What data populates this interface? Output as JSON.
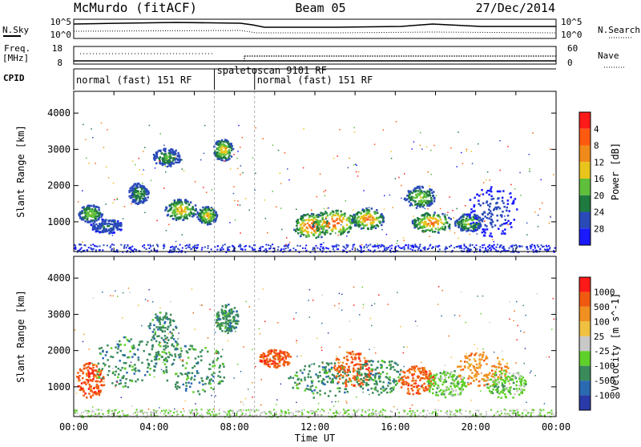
{
  "header": {
    "station": "McMurdo (fitACF)",
    "beam": "Beam 05",
    "date": "27/Dec/2014"
  },
  "strips": {
    "nsky_label": "N.Sky",
    "nsky_ticks": [
      "10^5",
      "10^0"
    ],
    "nsearch_label": "N.Search",
    "nsearch_ticks": [
      "10^5",
      "10^0"
    ],
    "freq_label_1": "Freq.",
    "freq_label_2": "[MHz]",
    "freq_ticks": [
      "18",
      "8"
    ],
    "nave_label": "Nave",
    "nave_ticks": [
      "60",
      "0"
    ],
    "cpid_label": "CPID",
    "cpid_segments": [
      {
        "label": "normal (fast) 151 RF",
        "start": 0.0,
        "end": 7.0
      },
      {
        "label": "spaletoscan 9101 RF",
        "start": 7.0,
        "end": 9.0
      },
      {
        "label": "normal (fast) 151 RF",
        "start": 9.0,
        "end": 24.0
      }
    ]
  },
  "chart_data": [
    {
      "type": "heatmap",
      "quantity": "Power",
      "ylabel": "Slant Range [km]",
      "xlabel": "Time UT",
      "xlim": [
        0,
        24
      ],
      "ylim": [
        180,
        4600
      ],
      "x_ticks": [
        "00:00",
        "04:00",
        "08:00",
        "12:00",
        "16:00",
        "20:00",
        "00:00"
      ],
      "y_ticks": [
        "1000",
        "2000",
        "3000",
        "4000"
      ],
      "colorbar": {
        "label": "Power [dB]",
        "ticks": [
          "4",
          "8",
          "12",
          "16",
          "20",
          "24",
          "28"
        ],
        "colors": [
          "#1a1aff",
          "#2a4ab8",
          "#1f7a3f",
          "#5fbf3a",
          "#e8c41c",
          "#f08a1a",
          "#ff5a10",
          "#ff1a1a"
        ]
      },
      "blobs": [
        {
          "t": 0.8,
          "r": 1250,
          "dt": 0.6,
          "dr": 250,
          "level": 4
        },
        {
          "t": 1.6,
          "r": 900,
          "dt": 0.8,
          "dr": 200,
          "level": 2
        },
        {
          "t": 3.2,
          "r": 1800,
          "dt": 0.5,
          "dr": 300,
          "level": 3
        },
        {
          "t": 4.6,
          "r": 2800,
          "dt": 0.7,
          "dr": 250,
          "level": 3
        },
        {
          "t": 5.3,
          "r": 1350,
          "dt": 0.8,
          "dr": 300,
          "level": 5
        },
        {
          "t": 6.6,
          "r": 1200,
          "dt": 0.5,
          "dr": 250,
          "level": 5
        },
        {
          "t": 7.4,
          "r": 3000,
          "dt": 0.5,
          "dr": 300,
          "level": 5
        },
        {
          "t": 11.8,
          "r": 900,
          "dt": 0.9,
          "dr": 350,
          "level": 7
        },
        {
          "t": 12.9,
          "r": 1000,
          "dt": 1.1,
          "dr": 350,
          "level": 7
        },
        {
          "t": 14.6,
          "r": 1100,
          "dt": 0.8,
          "dr": 300,
          "level": 6
        },
        {
          "t": 17.8,
          "r": 1000,
          "dt": 1.0,
          "dr": 300,
          "level": 6
        },
        {
          "t": 17.2,
          "r": 1700,
          "dt": 0.8,
          "dr": 300,
          "level": 4
        },
        {
          "t": 19.6,
          "r": 1000,
          "dt": 0.7,
          "dr": 250,
          "level": 4
        },
        {
          "t": 20.8,
          "r": 1300,
          "dt": 1.3,
          "dr": 700,
          "level": 1
        }
      ]
    },
    {
      "type": "heatmap",
      "quantity": "Velocity",
      "ylabel": "Slant Range [km]",
      "xlabel": "Time UT",
      "xlim": [
        0,
        24
      ],
      "ylim": [
        180,
        4600
      ],
      "x_ticks": [
        "00:00",
        "04:00",
        "08:00",
        "12:00",
        "16:00",
        "20:00",
        "00:00"
      ],
      "y_ticks": [
        "1000",
        "2000",
        "3000",
        "4000"
      ],
      "colorbar": {
        "label": "Velocity [m s^-1]",
        "ticks": [
          "1000",
          "500",
          "100",
          "25",
          "-25",
          "-100",
          "-500",
          "-1000"
        ],
        "colors": [
          "#2a3aa8",
          "#2a6ab0",
          "#3a8a5a",
          "#5fcf2a",
          "#c8c8c8",
          "#f0c040",
          "#f09020",
          "#f05a10",
          "#ff1a1a"
        ]
      },
      "blobs": [
        {
          "t": 0.8,
          "r": 1200,
          "dt": 0.7,
          "dr": 500,
          "level": 7
        },
        {
          "t": 2.5,
          "r": 1700,
          "dt": 1.6,
          "dr": 700,
          "level": 2
        },
        {
          "t": 4.4,
          "r": 2400,
          "dt": 0.8,
          "dr": 700,
          "level": 2
        },
        {
          "t": 6.0,
          "r": 1500,
          "dt": 1.6,
          "dr": 700,
          "level": 2
        },
        {
          "t": 7.6,
          "r": 2900,
          "dt": 0.6,
          "dr": 400,
          "level": 2
        },
        {
          "t": 10.0,
          "r": 1800,
          "dt": 0.8,
          "dr": 250,
          "level": 7
        },
        {
          "t": 12.4,
          "r": 1200,
          "dt": 1.8,
          "dr": 500,
          "level": 2
        },
        {
          "t": 13.8,
          "r": 1500,
          "dt": 1.0,
          "dr": 500,
          "level": 7
        },
        {
          "t": 15.2,
          "r": 1300,
          "dt": 1.2,
          "dr": 500,
          "level": 2
        },
        {
          "t": 17.0,
          "r": 1200,
          "dt": 0.9,
          "dr": 400,
          "level": 7
        },
        {
          "t": 18.5,
          "r": 1100,
          "dt": 1.0,
          "dr": 400,
          "level": 3
        },
        {
          "t": 20.3,
          "r": 1500,
          "dt": 1.3,
          "dr": 500,
          "level": 6
        },
        {
          "t": 21.5,
          "r": 1100,
          "dt": 1.0,
          "dr": 400,
          "level": 3
        }
      ]
    }
  ]
}
